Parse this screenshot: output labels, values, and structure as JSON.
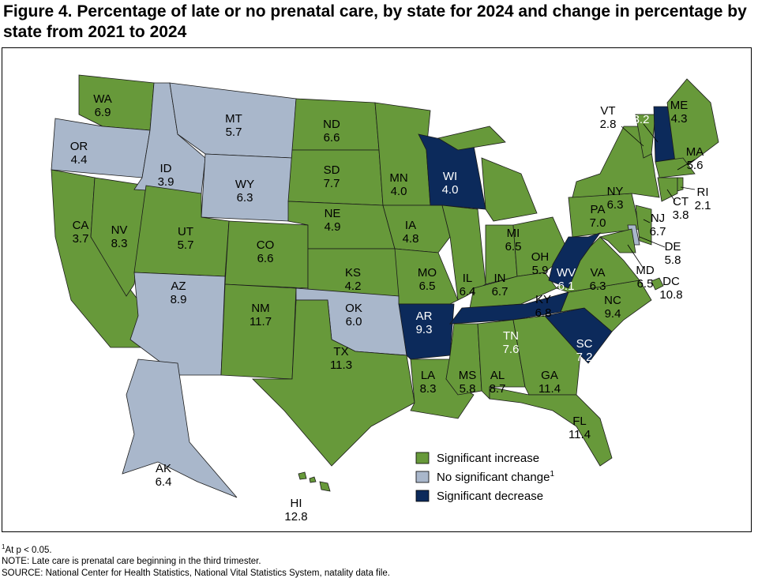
{
  "title": "Figure 4. Percentage of late or no prenatal care, by state for 2024 and change in percentage by state from 2021 to 2024",
  "colors": {
    "increase": "#67993a",
    "no_change": "#a9b7cb",
    "decrease": "#0c2a5b",
    "border": "#1a1a1a"
  },
  "legend": [
    {
      "key": "increase",
      "label": "Significant increase"
    },
    {
      "key": "no_change",
      "label": "No significant change",
      "sup": "1"
    },
    {
      "key": "decrease",
      "label": "Significant decrease"
    }
  ],
  "states": [
    {
      "abbr": "WA",
      "value": "6.9",
      "status": "increase"
    },
    {
      "abbr": "OR",
      "value": "4.4",
      "status": "no_change"
    },
    {
      "abbr": "CA",
      "value": "3.7",
      "status": "increase"
    },
    {
      "abbr": "NV",
      "value": "8.3",
      "status": "increase"
    },
    {
      "abbr": "ID",
      "value": "3.9",
      "status": "no_change"
    },
    {
      "abbr": "MT",
      "value": "5.7",
      "status": "no_change"
    },
    {
      "abbr": "WY",
      "value": "6.3",
      "status": "no_change"
    },
    {
      "abbr": "UT",
      "value": "5.7",
      "status": "increase"
    },
    {
      "abbr": "AZ",
      "value": "8.9",
      "status": "no_change"
    },
    {
      "abbr": "CO",
      "value": "6.6",
      "status": "increase"
    },
    {
      "abbr": "NM",
      "value": "11.7",
      "status": "increase"
    },
    {
      "abbr": "ND",
      "value": "6.6",
      "status": "increase"
    },
    {
      "abbr": "SD",
      "value": "7.7",
      "status": "increase"
    },
    {
      "abbr": "NE",
      "value": "4.9",
      "status": "increase"
    },
    {
      "abbr": "KS",
      "value": "4.2",
      "status": "increase"
    },
    {
      "abbr": "OK",
      "value": "6.0",
      "status": "no_change"
    },
    {
      "abbr": "TX",
      "value": "11.3",
      "status": "increase"
    },
    {
      "abbr": "MN",
      "value": "4.0",
      "status": "increase"
    },
    {
      "abbr": "IA",
      "value": "4.8",
      "status": "increase"
    },
    {
      "abbr": "MO",
      "value": "6.5",
      "status": "increase"
    },
    {
      "abbr": "AR",
      "value": "9.3",
      "status": "decrease"
    },
    {
      "abbr": "LA",
      "value": "8.3",
      "status": "increase"
    },
    {
      "abbr": "WI",
      "value": "4.0",
      "status": "decrease"
    },
    {
      "abbr": "IL",
      "value": "6.4",
      "status": "increase"
    },
    {
      "abbr": "MI",
      "value": "6.5",
      "status": "increase"
    },
    {
      "abbr": "IN",
      "value": "6.7",
      "status": "increase"
    },
    {
      "abbr": "OH",
      "value": "5.9",
      "status": "increase"
    },
    {
      "abbr": "KY",
      "value": "6.8",
      "status": "increase"
    },
    {
      "abbr": "TN",
      "value": "7.6",
      "status": "decrease"
    },
    {
      "abbr": "MS",
      "value": "5.8",
      "status": "increase"
    },
    {
      "abbr": "AL",
      "value": "8.7",
      "status": "increase"
    },
    {
      "abbr": "GA",
      "value": "11.4",
      "status": "increase"
    },
    {
      "abbr": "FL",
      "value": "11.4",
      "status": "increase"
    },
    {
      "abbr": "SC",
      "value": "7.2",
      "status": "decrease"
    },
    {
      "abbr": "NC",
      "value": "9.4",
      "status": "increase"
    },
    {
      "abbr": "VA",
      "value": "6.3",
      "status": "increase"
    },
    {
      "abbr": "PA",
      "value": "7.0",
      "status": "increase"
    },
    {
      "abbr": "WV",
      "value": "6.1",
      "status": "decrease"
    },
    {
      "abbr": "NY",
      "value": "6.3",
      "status": "increase"
    },
    {
      "abbr": "VT",
      "value": "2.8",
      "status": "increase"
    },
    {
      "abbr": "NH",
      "value": "3.2",
      "status": "decrease"
    },
    {
      "abbr": "ME",
      "value": "4.3",
      "status": "increase"
    },
    {
      "abbr": "MA",
      "value": "5.6",
      "status": "increase"
    },
    {
      "abbr": "CT",
      "value": "3.8",
      "status": "increase"
    },
    {
      "abbr": "RI",
      "value": "2.1",
      "status": "increase"
    },
    {
      "abbr": "NJ",
      "value": "6.7",
      "status": "increase"
    },
    {
      "abbr": "DE",
      "value": "5.8",
      "status": "no_change"
    },
    {
      "abbr": "MD",
      "value": "6.5",
      "status": "increase"
    },
    {
      "abbr": "DC",
      "value": "10.8",
      "status": "increase"
    },
    {
      "abbr": "AK",
      "value": "6.4",
      "status": "no_change"
    },
    {
      "abbr": "HI",
      "value": "12.8",
      "status": "increase"
    }
  ],
  "notes": {
    "footnote_sup": "1",
    "footnote": "At p < 0.05.",
    "note": "NOTE: Late care is prenatal care beginning in the third trimester.",
    "source": "SOURCE: National Center for Health Statistics, National Vital Statistics System, natality data file."
  }
}
